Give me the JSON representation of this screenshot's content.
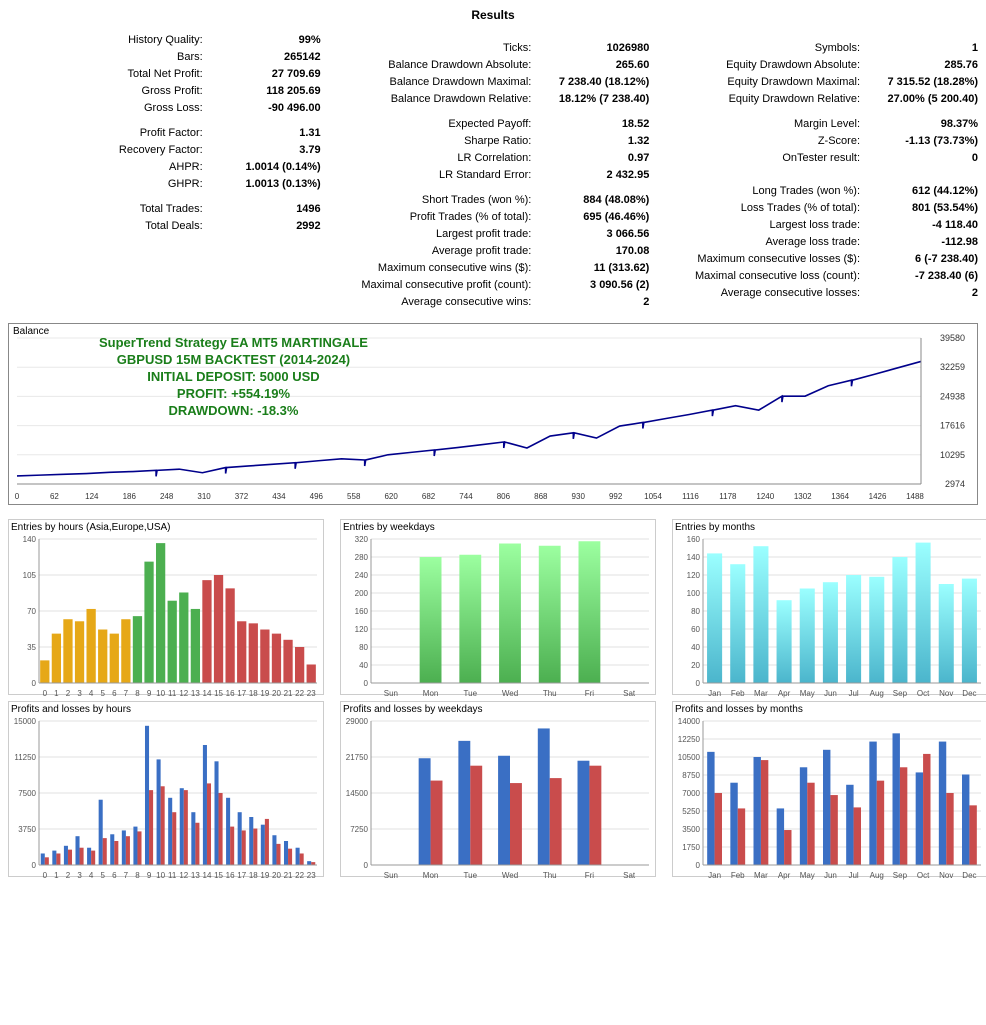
{
  "title": "Results",
  "stats": {
    "col1": [
      {
        "l": "History Quality:",
        "v": "99%"
      },
      {
        "l": "Bars:",
        "v": "265142"
      },
      {
        "l": "Total Net Profit:",
        "v": "27 709.69"
      },
      {
        "l": "Gross Profit:",
        "v": "118 205.69"
      },
      {
        "l": "Gross Loss:",
        "v": "-90 496.00"
      },
      {
        "sp": true
      },
      {
        "l": "Profit Factor:",
        "v": "1.31"
      },
      {
        "l": "Recovery Factor:",
        "v": "3.79"
      },
      {
        "l": "AHPR:",
        "v": "1.0014 (0.14%)"
      },
      {
        "l": "GHPR:",
        "v": "1.0013 (0.13%)"
      },
      {
        "sp": true
      },
      {
        "l": "Total Trades:",
        "v": "1496"
      },
      {
        "l": "Total Deals:",
        "v": "2992"
      }
    ],
    "col2": [
      {
        "sp": true
      },
      {
        "l": "Ticks:",
        "v": "1026980"
      },
      {
        "l": "Balance Drawdown Absolute:",
        "v": "265.60"
      },
      {
        "l": "Balance Drawdown Maximal:",
        "v": "7 238.40 (18.12%)"
      },
      {
        "l": "Balance Drawdown Relative:",
        "v": "18.12% (7 238.40)"
      },
      {
        "sp": true
      },
      {
        "l": "Expected Payoff:",
        "v": "18.52"
      },
      {
        "l": "Sharpe Ratio:",
        "v": "1.32"
      },
      {
        "l": "LR Correlation:",
        "v": "0.97"
      },
      {
        "l": "LR Standard Error:",
        "v": "2 432.95"
      },
      {
        "sp": true
      },
      {
        "l": "Short Trades (won %):",
        "v": "884 (48.08%)"
      },
      {
        "l": "Profit Trades (% of total):",
        "v": "695 (46.46%)"
      },
      {
        "l": "Largest profit trade:",
        "v": "3 066.56"
      },
      {
        "l": "Average profit trade:",
        "v": "170.08"
      },
      {
        "l": "Maximum consecutive wins ($):",
        "v": "11 (313.62)"
      },
      {
        "l": "Maximal consecutive profit (count):",
        "v": "3 090.56 (2)"
      },
      {
        "l": "Average consecutive wins:",
        "v": "2"
      }
    ],
    "col3": [
      {
        "sp": true
      },
      {
        "l": "Symbols:",
        "v": "1"
      },
      {
        "l": "Equity Drawdown Absolute:",
        "v": "285.76"
      },
      {
        "l": "Equity Drawdown Maximal:",
        "v": "7 315.52 (18.28%)"
      },
      {
        "l": "Equity Drawdown Relative:",
        "v": "27.00% (5 200.40)"
      },
      {
        "sp": true
      },
      {
        "l": "Margin Level:",
        "v": "98.37%"
      },
      {
        "l": "Z-Score:",
        "v": "-1.13 (73.73%)"
      },
      {
        "l": "OnTester result:",
        "v": "0"
      },
      {
        "sp": true
      },
      {
        "sp": true
      },
      {
        "l": "Long Trades (won %):",
        "v": "612 (44.12%)"
      },
      {
        "l": "Loss Trades (% of total):",
        "v": "801 (53.54%)"
      },
      {
        "l": "Largest loss trade:",
        "v": "-4 118.40"
      },
      {
        "l": "Average loss trade:",
        "v": "-112.98"
      },
      {
        "l": "Maximum consecutive losses ($):",
        "v": "6 (-7 238.40)"
      },
      {
        "l": "Maximal consecutive loss (count):",
        "v": "-7 238.40 (6)"
      },
      {
        "l": "Average consecutive losses:",
        "v": "2"
      }
    ]
  },
  "balance": {
    "label": "Balance",
    "overlay": [
      "SuperTrend Strategy EA MT5 MARTINGALE",
      "GBPUSD 15M BACKTEST (2014-2024)",
      "INITIAL DEPOSIT: 5000 USD",
      "PROFIT: +554.19%",
      "DRAWDOWN: -18.3%"
    ],
    "ymin": 2974,
    "ymax": 39580,
    "yticks": [
      2974,
      10295,
      17616,
      24938,
      32259,
      39580
    ],
    "xmax": 1498,
    "xstep": 62,
    "line_color": "#00008b",
    "line_width": 1.6,
    "grid_color": "#e8e8e8",
    "bg": "#ffffff",
    "curve": [
      5000,
      5200,
      5400,
      5600,
      5900,
      6100,
      6400,
      6700,
      5800,
      7100,
      7500,
      7900,
      8300,
      8800,
      9300,
      9000,
      10300,
      10900,
      11500,
      12100,
      12800,
      13500,
      12000,
      15000,
      15800,
      14500,
      17500,
      18400,
      19400,
      20400,
      21500,
      22600,
      21500,
      25000,
      25000,
      27600,
      29000,
      30500,
      32100,
      33700
    ]
  },
  "small_charts_row1": [
    {
      "title": "Entries by hours (Asia,Europe,USA)",
      "type": "bar",
      "ymax": 140,
      "ystep": 35,
      "labels": [
        "0",
        "1",
        "2",
        "3",
        "4",
        "5",
        "6",
        "7",
        "8",
        "9",
        "10",
        "11",
        "12",
        "13",
        "14",
        "15",
        "16",
        "17",
        "18",
        "19",
        "20",
        "21",
        "22",
        "23"
      ],
      "values": [
        22,
        48,
        62,
        60,
        72,
        52,
        48,
        62,
        65,
        118,
        136,
        80,
        88,
        72,
        100,
        105,
        92,
        60,
        58,
        52,
        48,
        42,
        35,
        18
      ],
      "colors": [
        "#e6a817",
        "#e6a817",
        "#e6a817",
        "#e6a817",
        "#e6a817",
        "#e6a817",
        "#e6a817",
        "#e6a817",
        "#4caf50",
        "#4caf50",
        "#4caf50",
        "#4caf50",
        "#4caf50",
        "#4caf50",
        "#c94c4c",
        "#c94c4c",
        "#c94c4c",
        "#c94c4c",
        "#c94c4c",
        "#c94c4c",
        "#c94c4c",
        "#c94c4c",
        "#c94c4c",
        "#c94c4c"
      ],
      "grid_color": "#e0e0e0"
    },
    {
      "title": "Entries by weekdays",
      "type": "bar",
      "ymax": 320,
      "ystep": 40,
      "labels": [
        "Sun",
        "Mon",
        "Tue",
        "Wed",
        "Thu",
        "Fri",
        "Sat"
      ],
      "values": [
        0,
        280,
        285,
        310,
        305,
        315,
        0
      ],
      "colors": [
        "#4caf50",
        "#4caf50",
        "#4caf50",
        "#4caf50",
        "#4caf50",
        "#4caf50",
        "#4caf50"
      ],
      "bar_width": 0.55,
      "grid_color": "#e0e0e0",
      "gradient": true
    },
    {
      "title": "Entries by months",
      "type": "bar",
      "ymax": 160,
      "ystep": 20,
      "labels": [
        "Jan",
        "Feb",
        "Mar",
        "Apr",
        "May",
        "Jun",
        "Jul",
        "Aug",
        "Sep",
        "Oct",
        "Nov",
        "Dec"
      ],
      "values": [
        144,
        132,
        152,
        92,
        105,
        112,
        120,
        118,
        140,
        156,
        110,
        116
      ],
      "colors": [
        "#4bb5cc",
        "#4bb5cc",
        "#4bb5cc",
        "#4bb5cc",
        "#4bb5cc",
        "#4bb5cc",
        "#4bb5cc",
        "#4bb5cc",
        "#4bb5cc",
        "#4bb5cc",
        "#4bb5cc",
        "#4bb5cc"
      ],
      "bar_width": 0.65,
      "grid_color": "#e0e0e0",
      "gradient": true
    }
  ],
  "small_charts_row2": [
    {
      "title": "Profits and losses by hours",
      "type": "grouped",
      "ymax": 15000,
      "ystep": 3750,
      "labels": [
        "0",
        "1",
        "2",
        "3",
        "4",
        "5",
        "6",
        "7",
        "8",
        "9",
        "10",
        "11",
        "12",
        "13",
        "14",
        "15",
        "16",
        "17",
        "18",
        "19",
        "20",
        "21",
        "22",
        "23"
      ],
      "series": [
        {
          "color": "#3a6fc4",
          "values": [
            1200,
            1500,
            2000,
            3000,
            1800,
            6800,
            3200,
            3600,
            4000,
            14500,
            11000,
            7000,
            8000,
            5500,
            12500,
            10800,
            7000,
            5500,
            5000,
            4200,
            3100,
            2500,
            1800,
            400
          ]
        },
        {
          "color": "#c94c4c",
          "values": [
            800,
            1200,
            1600,
            1800,
            1500,
            2800,
            2500,
            3000,
            3500,
            7800,
            8200,
            5500,
            7800,
            4400,
            8500,
            7500,
            4000,
            3600,
            3800,
            4800,
            2200,
            1700,
            1200,
            300
          ]
        }
      ],
      "grid_color": "#e0e0e0"
    },
    {
      "title": "Profits and losses by weekdays",
      "type": "grouped",
      "ymax": 29000,
      "ystep": 7250,
      "labels": [
        "Sun",
        "Mon",
        "Tue",
        "Wed",
        "Thu",
        "Fri",
        "Sat"
      ],
      "series": [
        {
          "color": "#3a6fc4",
          "values": [
            0,
            21500,
            25000,
            22000,
            27500,
            21000,
            0
          ]
        },
        {
          "color": "#c94c4c",
          "values": [
            0,
            17000,
            20000,
            16500,
            17500,
            20000,
            0
          ]
        }
      ],
      "bar_width": 0.3,
      "grid_color": "#e0e0e0"
    },
    {
      "title": "Profits and losses by months",
      "type": "grouped",
      "ymax": 14000,
      "ystep": 1750,
      "labels": [
        "Jan",
        "Feb",
        "Mar",
        "Apr",
        "May",
        "Jun",
        "Jul",
        "Aug",
        "Sep",
        "Oct",
        "Nov",
        "Dec"
      ],
      "series": [
        {
          "color": "#3a6fc4",
          "values": [
            11000,
            8000,
            10500,
            5500,
            9500,
            11200,
            7800,
            12000,
            12800,
            9000,
            12000,
            8800
          ]
        },
        {
          "color": "#c94c4c",
          "values": [
            7000,
            5500,
            10200,
            3400,
            8000,
            6800,
            5600,
            8200,
            9500,
            10800,
            7000,
            5800
          ]
        }
      ],
      "bar_width": 0.32,
      "grid_color": "#e0e0e0"
    }
  ],
  "axis_font": "9px Tahoma",
  "axis_color": "#666"
}
